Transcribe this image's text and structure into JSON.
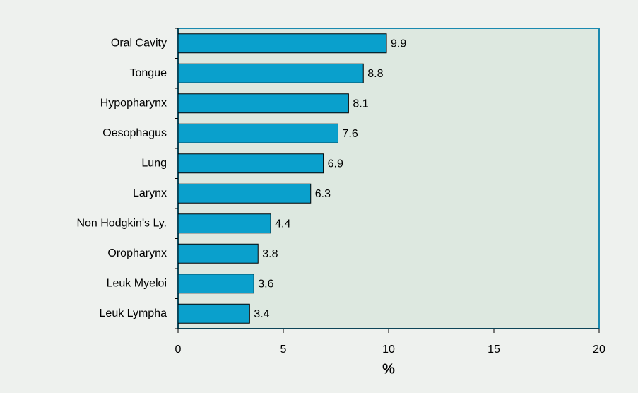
{
  "chart_data": {
    "type": "bar",
    "orientation": "horizontal",
    "categories": [
      "Oral Cavity",
      "Tongue",
      "Hypopharynx",
      "Oesophagus",
      "Lung",
      "Larynx",
      "Non Hodgkin's Ly.",
      "Oropharynx",
      "Leuk Myeloi",
      "Leuk Lympha"
    ],
    "values": [
      9.9,
      8.8,
      8.1,
      7.6,
      6.9,
      6.3,
      4.4,
      3.8,
      3.6,
      3.4
    ],
    "color": "#0aa0cc",
    "xlabel": "%",
    "xlim": [
      0,
      20
    ],
    "xticks": [
      0,
      5,
      10,
      15,
      20
    ]
  }
}
